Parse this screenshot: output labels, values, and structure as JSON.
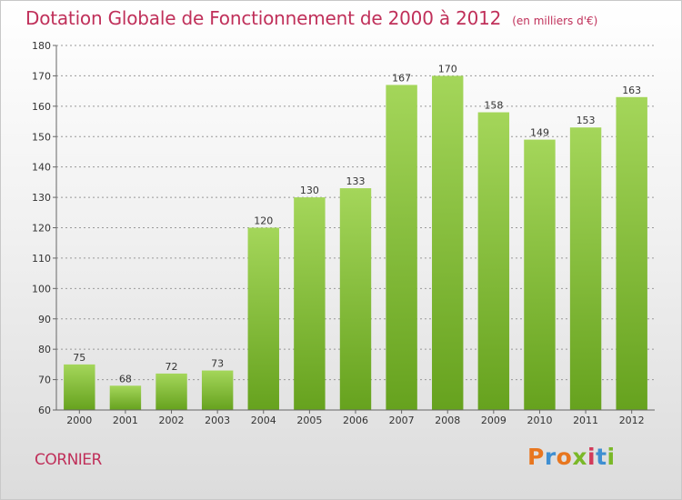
{
  "header": {
    "title": "Dotation Globale de Fonctionnement de 2000 à 2012",
    "subtitle": "(en milliers d'€)"
  },
  "footer": {
    "city": "CORNIER",
    "brand": "Proxiti"
  },
  "colors": {
    "title": "#c0305a",
    "bar_top": "#a4d65a",
    "bar_bottom": "#66a21e",
    "grid": "#999999"
  },
  "chart_data": {
    "type": "bar",
    "title": "Dotation Globale de Fonctionnement de 2000 à 2012",
    "subtitle": "(en milliers d'€)",
    "xlabel": "",
    "ylabel": "",
    "categories": [
      "2000",
      "2001",
      "2002",
      "2003",
      "2004",
      "2005",
      "2006",
      "2007",
      "2008",
      "2009",
      "2010",
      "2011",
      "2012"
    ],
    "values": [
      75,
      68,
      72,
      73,
      120,
      130,
      133,
      167,
      170,
      158,
      149,
      153,
      163
    ],
    "ylim": [
      60,
      180
    ],
    "yticks": [
      60,
      70,
      80,
      90,
      100,
      110,
      120,
      130,
      140,
      150,
      160,
      170,
      180
    ],
    "grid": true,
    "legend": "none"
  }
}
